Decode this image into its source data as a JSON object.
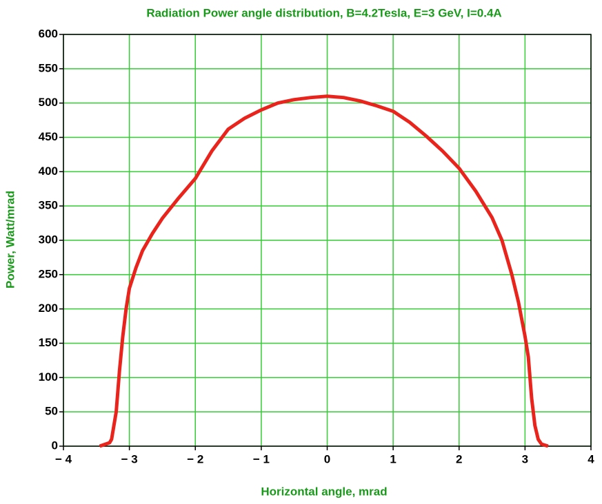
{
  "chart_data": {
    "type": "line",
    "title": "Radiation Power angle distribution, B=4.2Tesla, E=3 GeV, I=0.4A",
    "x_label": "Horizontal angle, mrad",
    "y_label": "Power, Watt/mrad",
    "xlim": [
      -4,
      4
    ],
    "xticks": [
      {
        "value": -4,
        "label": "− 4"
      },
      {
        "value": -3,
        "label": "− 3"
      },
      {
        "value": -2,
        "label": "− 2"
      },
      {
        "value": -1,
        "label": "− 1"
      },
      0,
      1,
      2,
      3,
      4
    ],
    "ylim": [
      0,
      600
    ],
    "yticks": [
      0,
      50,
      100,
      150,
      200,
      250,
      300,
      350,
      400,
      450,
      500,
      550,
      600
    ],
    "grid": true,
    "grid_color": "#33cc33",
    "series": [
      {
        "name": "Power",
        "color": "#e8241c",
        "x": [
          -3.45,
          -3.3,
          -3.27,
          -3.2,
          -3.15,
          -3.1,
          -3.05,
          -3.0,
          -2.9,
          -2.8,
          -2.65,
          -2.5,
          -2.25,
          -2.0,
          -1.75,
          -1.5,
          -1.25,
          -1.0,
          -0.75,
          -0.5,
          -0.25,
          0,
          0.25,
          0.5,
          0.75,
          1.0,
          1.25,
          1.5,
          1.75,
          2.0,
          2.25,
          2.5,
          2.65,
          2.8,
          2.9,
          3.0,
          3.05,
          3.1,
          3.15,
          3.2,
          3.25,
          3.35
        ],
        "values": [
          0,
          5,
          10,
          50,
          110,
          160,
          200,
          230,
          260,
          285,
          310,
          332,
          362,
          390,
          430,
          462,
          478,
          490,
          500,
          505,
          508,
          510,
          508,
          503,
          496,
          488,
          472,
          452,
          430,
          405,
          372,
          333,
          300,
          250,
          210,
          160,
          130,
          70,
          30,
          10,
          3,
          0
        ]
      }
    ]
  }
}
